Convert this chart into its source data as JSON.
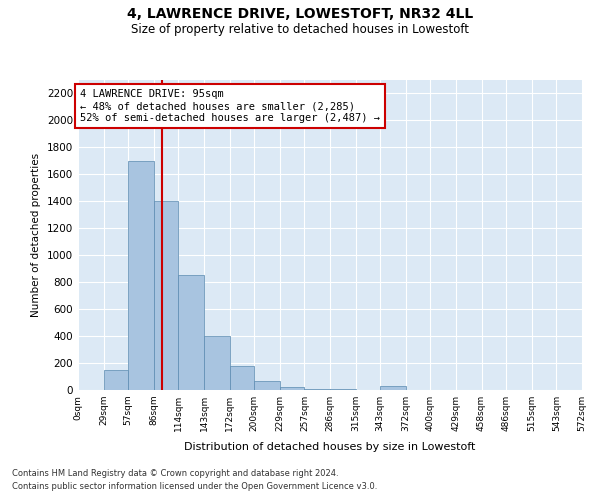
{
  "title": "4, LAWRENCE DRIVE, LOWESTOFT, NR32 4LL",
  "subtitle": "Size of property relative to detached houses in Lowestoft",
  "xlabel": "Distribution of detached houses by size in Lowestoft",
  "ylabel": "Number of detached properties",
  "annotation_title": "4 LAWRENCE DRIVE: 95sqm",
  "annotation_line1": "← 48% of detached houses are smaller (2,285)",
  "annotation_line2": "52% of semi-detached houses are larger (2,487) →",
  "footer_line1": "Contains HM Land Registry data © Crown copyright and database right 2024.",
  "footer_line2": "Contains public sector information licensed under the Open Government Licence v3.0.",
  "property_size": 95,
  "bin_edges": [
    0,
    29,
    57,
    86,
    114,
    143,
    172,
    200,
    229,
    257,
    286,
    315,
    343,
    372,
    400,
    429,
    458,
    486,
    515,
    543,
    572
  ],
  "bar_heights": [
    0,
    150,
    1700,
    1400,
    850,
    400,
    175,
    65,
    25,
    10,
    5,
    0,
    30,
    0,
    0,
    0,
    0,
    0,
    0,
    0
  ],
  "bar_color": "#a8c4e0",
  "bar_edge_color": "#5a8ab0",
  "vline_color": "#cc0000",
  "annotation_box_color": "#cc0000",
  "background_color": "#dce9f5",
  "ylim": [
    0,
    2300
  ],
  "yticks": [
    0,
    200,
    400,
    600,
    800,
    1000,
    1200,
    1400,
    1600,
    1800,
    2000,
    2200
  ]
}
